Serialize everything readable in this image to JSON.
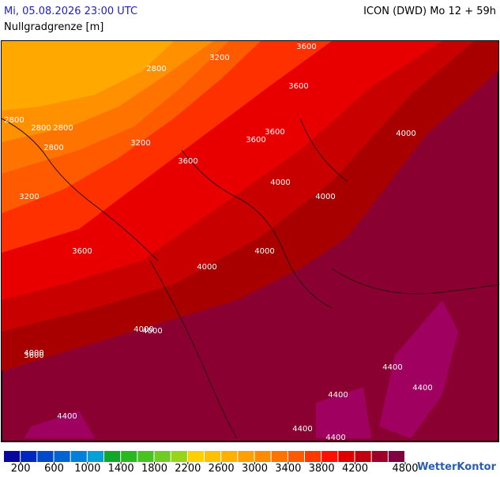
{
  "header": {
    "datetime": "Mi, 05.08.2026 23:00 UTC",
    "model": "ICON (DWD) Mo 12 + 59h",
    "parameter": "Nullgradgrenze [m]"
  },
  "contour_labels": [
    "3200",
    "2800",
    "2800",
    "2800",
    "2800",
    "2800",
    "3200",
    "3600",
    "3600",
    "3600",
    "3600",
    "3600",
    "3200",
    "3600",
    "4000",
    "4000",
    "4000",
    "4000",
    "4000",
    "3600",
    "4000",
    "4000",
    "4000",
    "4400",
    "4400",
    "4400",
    "4400",
    "4400",
    "4400"
  ],
  "legend": {
    "range": [
      0,
      4800
    ],
    "ticks": [
      200,
      600,
      1000,
      1400,
      1800,
      2200,
      2600,
      3000,
      3400,
      3800,
      4200,
      4800
    ],
    "colors": [
      "#0808a0",
      "#0028c0",
      "#0048cc",
      "#0064d4",
      "#0080dc",
      "#00a0d8",
      "#10a828",
      "#28b820",
      "#48c420",
      "#70cc20",
      "#98d418",
      "#ffd000",
      "#ffc000",
      "#ffb000",
      "#ffa000",
      "#ff8c00",
      "#ff7400",
      "#ff5a00",
      "#ff3800",
      "#ff1000",
      "#e00000",
      "#c00010",
      "#a00028",
      "#800040"
    ]
  },
  "logo": "WetterKontor"
}
